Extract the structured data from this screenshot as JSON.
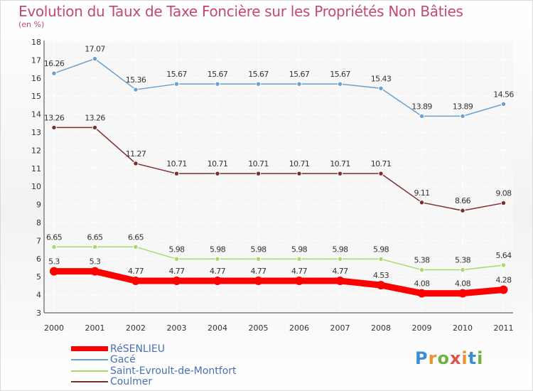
{
  "header": {
    "title": "Evolution du Taux de Taxe Foncière sur les Propriétés Non Bâties",
    "subtitle": "(en %)"
  },
  "logo": {
    "text": "Proxiti"
  },
  "chart_data": {
    "type": "line",
    "x": [
      "2000",
      "2001",
      "2002",
      "2003",
      "2004",
      "2005",
      "2006",
      "2007",
      "2008",
      "2009",
      "2010",
      "2011"
    ],
    "ylim": [
      3,
      18
    ],
    "yticks": [
      3,
      4,
      5,
      6,
      7,
      8,
      9,
      10,
      11,
      12,
      13,
      14,
      15,
      16,
      17,
      18
    ],
    "grid": true,
    "legend_position": "bottom-left",
    "series": [
      {
        "name": "RéSENLIEU",
        "color": "#ff0000",
        "labels": [
          "5.3",
          "5.3",
          "4.77",
          "4.77",
          "4.77",
          "4.77",
          "4.77",
          "4.77",
          "4.53",
          "4.08",
          "4.08",
          "4.28"
        ],
        "values": [
          5.3,
          5.3,
          4.77,
          4.77,
          4.77,
          4.77,
          4.77,
          4.77,
          4.53,
          4.08,
          4.08,
          4.28
        ]
      },
      {
        "name": "Gacé",
        "color": "#6aa0cf",
        "labels": [
          "16.26",
          "17.07",
          "15.36",
          "15.67",
          "15.67",
          "15.67",
          "15.67",
          "15.67",
          "15.43",
          "13.89",
          "13.89",
          "14.56"
        ],
        "values": [
          16.26,
          17.07,
          15.36,
          15.67,
          15.67,
          15.67,
          15.67,
          15.67,
          15.43,
          13.89,
          13.89,
          14.56
        ]
      },
      {
        "name": "Saint-Evroult-de-Montfort",
        "color": "#a6d96a",
        "labels": [
          "6.65",
          "6.65",
          "6.65",
          "5.98",
          "5.98",
          "5.98",
          "5.98",
          "5.98",
          "5.98",
          "5.38",
          "5.38",
          "5.64"
        ],
        "values": [
          6.65,
          6.65,
          6.65,
          5.98,
          5.98,
          5.98,
          5.98,
          5.98,
          5.98,
          5.38,
          5.38,
          5.64
        ]
      },
      {
        "name": "Coulmer",
        "color": "#7a2e2e",
        "labels": [
          "13.26",
          "13.26",
          "11.27",
          "10.71",
          "10.71",
          "10.71",
          "10.71",
          "10.71",
          "10.71",
          "9.11",
          "8.66",
          "9.08"
        ],
        "values": [
          13.26,
          13.26,
          11.27,
          10.71,
          10.71,
          10.71,
          10.71,
          10.71,
          10.71,
          9.11,
          8.66,
          9.08
        ]
      }
    ]
  }
}
